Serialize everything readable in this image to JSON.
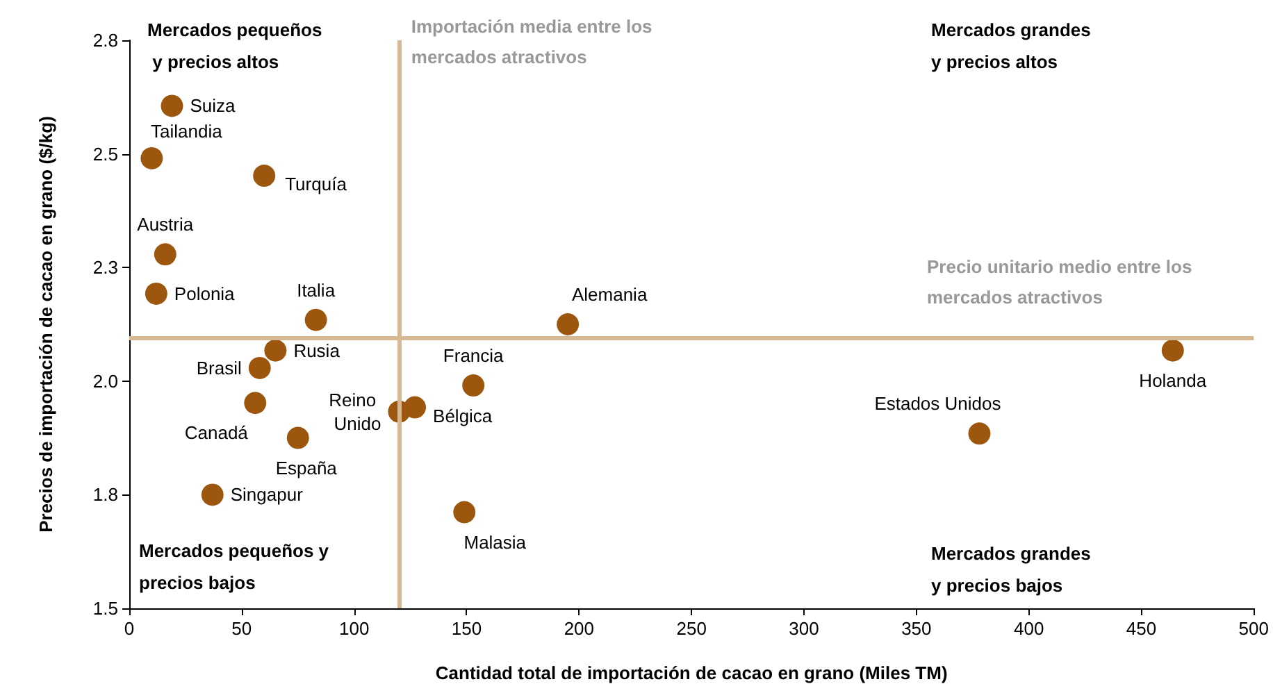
{
  "chart_data": {
    "type": "scatter",
    "xlabel": "Cantidad total de importación de cacao en grano (Miles TM)",
    "ylabel": "Precios de importación de cacao en grano ($/kg)",
    "series": [
      {
        "color": "#9c560e",
        "x": [
          19,
          10,
          60,
          16,
          12,
          83,
          195,
          65,
          58,
          153,
          464,
          56,
          120,
          127,
          75,
          378,
          37,
          149
        ],
        "values": [
          2.65,
          2.53,
          2.49,
          2.31,
          2.22,
          2.16,
          2.15,
          2.09,
          2.05,
          2.01,
          2.09,
          1.97,
          1.95,
          1.96,
          1.89,
          1.9,
          1.76,
          1.72
        ],
        "value_labels": [
          "Suiza",
          "Tailandia",
          "Turquía",
          "Austria",
          "Polonia",
          "Italia",
          "Alemania",
          "Rusia",
          "Brasil",
          "Francia",
          "Holanda",
          "Canadá",
          "Reino Unido",
          "Bélgica",
          "España",
          "Estados Unidos",
          "Singapur",
          "Malasia"
        ]
      }
    ],
    "xlim": [
      0,
      500
    ],
    "xticks": [
      0,
      50,
      100,
      150,
      200,
      250,
      300,
      350,
      400,
      450,
      500
    ],
    "ylim": [
      1.5,
      2.8
    ],
    "yticks": [
      1.5,
      {
        "value": 1.76,
        "label": "1.8"
      },
      {
        "value": 2.02,
        "label": "2.0"
      },
      {
        "value": 2.28,
        "label": "2.3"
      },
      {
        "value": 2.54,
        "label": "2.5"
      },
      2.8
    ],
    "ref_lines": [
      {
        "axis": "x",
        "value": 120,
        "label": "Importación media entre los mercados atractivos",
        "color": "#d6b992"
      },
      {
        "axis": "y",
        "value": 2.12,
        "label": "Precio unitario medio entre los mercados atractivos",
        "color": "#d6b992"
      }
    ],
    "annotations": [
      "Mercados pequeños y precios altos",
      "Mercados grandes y precios altos",
      "Mercados pequeños y precios bajos",
      "Mercados grandes y precios bajos"
    ],
    "grid": false,
    "marker": "circle"
  }
}
